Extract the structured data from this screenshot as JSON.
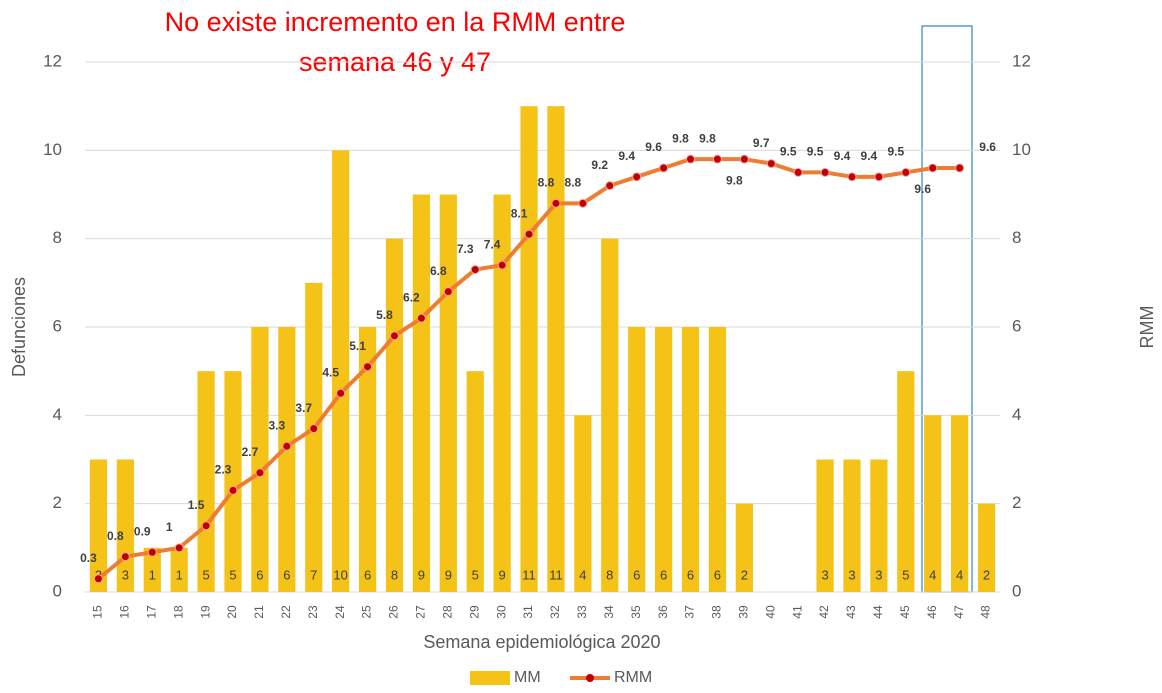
{
  "chart_data": {
    "type": "bar",
    "title": [
      "No existe incremento en la  RMM  entre",
      "semana 46 y 47"
    ],
    "x_label": "Semana epidemiológica 2020",
    "y_label": "Defunciones",
    "y2_label": "RMM",
    "categories": [
      "15",
      "16",
      "17",
      "18",
      "19",
      "20",
      "21",
      "22",
      "23",
      "24",
      "25",
      "26",
      "27",
      "28",
      "29",
      "30",
      "31",
      "32",
      "33",
      "34",
      "35",
      "36",
      "37",
      "38",
      "39",
      "40",
      "41",
      "42",
      "43",
      "44",
      "45",
      "46",
      "47",
      "48"
    ],
    "series": [
      {
        "name": "MM",
        "type": "bar",
        "color": "#f5c218",
        "values": [
          3,
          3,
          1,
          1,
          5,
          5,
          6,
          6,
          7,
          10,
          6,
          8,
          9,
          9,
          5,
          9,
          11,
          11,
          4,
          8,
          6,
          6,
          6,
          6,
          2,
          null,
          null,
          3,
          3,
          3,
          5,
          4,
          4,
          2
        ]
      },
      {
        "name": "RMM",
        "type": "line",
        "axis": "y2",
        "color": "#ed7d31",
        "marker_color": "#c00000",
        "values": [
          0.3,
          0.8,
          0.9,
          1,
          1.5,
          2.3,
          2.7,
          3.3,
          3.7,
          4.5,
          5.1,
          5.8,
          6.2,
          6.8,
          7.3,
          7.4,
          8.1,
          8.8,
          8.8,
          9.2,
          9.4,
          9.6,
          9.8,
          9.8,
          9.8,
          9.7,
          9.5,
          9.5,
          9.4,
          9.4,
          9.5,
          9.6,
          9.6,
          null
        ]
      }
    ],
    "ylim": [
      0,
      12
    ],
    "yticks": [
      0,
      2,
      4,
      6,
      8,
      10,
      12
    ],
    "y2lim": [
      0,
      12
    ],
    "y2ticks": [
      0,
      2,
      4,
      6,
      8,
      10,
      12
    ],
    "grid": true,
    "legend": "bottom"
  }
}
